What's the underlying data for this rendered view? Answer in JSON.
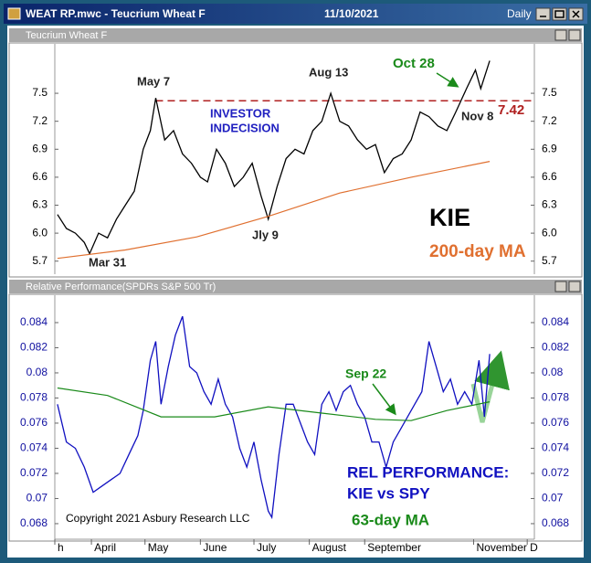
{
  "window": {
    "title": "WEAT RP.mwc - Teucrium Wheat F",
    "date": "11/10/2021",
    "period": "Daily"
  },
  "chart_data": [
    {
      "type": "line",
      "title": "Teucrium Wheat F",
      "xlim": [
        70.5,
        339
      ],
      "ylim": [
        5.56,
        8.03
      ],
      "yticks": [
        5.7,
        {
          "value": 6,
          "label": "6.0"
        },
        6.3,
        6.6,
        6.9,
        7.2,
        7.5
      ],
      "hline": 7.42,
      "hline_color": "#b02020",
      "series": [
        {
          "color": "#000000",
          "x": [
            72,
            77,
            82,
            87,
            90,
            95,
            100,
            105,
            110,
            115,
            120,
            124,
            127,
            132,
            137,
            142,
            147,
            152,
            156,
            161,
            166,
            171,
            176,
            181,
            186,
            190,
            195,
            200,
            205,
            210,
            215,
            220,
            225,
            230,
            235,
            240,
            245,
            250,
            255,
            260,
            265,
            270,
            275,
            280,
            285,
            290,
            295,
            301,
            306,
            309,
            314
          ],
          "values": [
            6.2,
            6.05,
            6.0,
            5.9,
            5.78,
            6.0,
            5.95,
            6.15,
            6.3,
            6.45,
            6.9,
            7.1,
            7.45,
            7.0,
            7.1,
            6.85,
            6.75,
            6.6,
            6.55,
            6.9,
            6.75,
            6.5,
            6.6,
            6.75,
            6.4,
            6.15,
            6.5,
            6.8,
            6.9,
            6.85,
            7.1,
            7.2,
            7.5,
            7.2,
            7.15,
            7.0,
            6.9,
            6.95,
            6.65,
            6.8,
            6.85,
            7.0,
            7.3,
            7.25,
            7.15,
            7.1,
            7.3,
            7.55,
            7.75,
            7.55,
            7.85
          ]
        },
        {
          "name": "200-day MA",
          "color": "#e07030",
          "x": [
            72,
            110,
            150,
            190,
            230,
            270,
            314
          ],
          "values": [
            5.73,
            5.82,
            5.96,
            6.18,
            6.43,
            6.6,
            6.77
          ]
        }
      ],
      "annotations": [
        "May 7",
        "Aug 13",
        "Oct 28",
        "Nov 8",
        "INVESTOR",
        "INDECISION",
        "Mar 31",
        "Jly 9",
        "KIE"
      ]
    },
    {
      "type": "line",
      "title": "Relative Performance(SPDRs S&P 500 Tr)",
      "xlim": [
        70.5,
        339
      ],
      "ylim": [
        0.06676,
        0.08618
      ],
      "yticks": [
        0.068,
        0.07,
        0.072,
        0.074,
        0.076,
        0.078,
        0.08,
        0.082,
        0.084
      ],
      "xticks": [
        {
          "value": 70.5,
          "label": "h"
        },
        {
          "value": 91,
          "label": "April"
        },
        {
          "value": 121,
          "label": "May"
        },
        {
          "value": 152,
          "label": "June"
        },
        {
          "value": 182,
          "label": "July"
        },
        {
          "value": 213,
          "label": "August"
        },
        {
          "value": 244,
          "label": "September"
        },
        {
          "value": 305,
          "label": "November"
        },
        {
          "value": 335,
          "label": "D"
        }
      ],
      "series": [
        {
          "name": "REL PERFORMANCE:",
          "color": "#1010c0",
          "x": [
            72,
            77,
            82,
            87,
            92,
            97,
            102,
            107,
            112,
            117,
            120,
            124,
            127,
            130,
            134,
            138,
            142,
            146,
            150,
            154,
            158,
            162,
            166,
            170,
            174,
            178,
            182,
            186,
            190,
            192,
            196,
            200,
            204,
            208,
            212,
            216,
            220,
            224,
            228,
            232,
            236,
            240,
            244,
            248,
            252,
            256,
            260,
            264,
            268,
            272,
            276,
            280,
            284,
            288,
            292,
            296,
            300,
            304,
            308,
            311,
            314
          ],
          "values": [
            0.0775,
            0.0745,
            0.074,
            0.0725,
            0.0705,
            0.071,
            0.0715,
            0.072,
            0.0735,
            0.075,
            0.077,
            0.081,
            0.0825,
            0.0775,
            0.0805,
            0.083,
            0.0845,
            0.0805,
            0.08,
            0.0785,
            0.0775,
            0.0795,
            0.0775,
            0.0765,
            0.074,
            0.0725,
            0.0745,
            0.0715,
            0.069,
            0.0685,
            0.0735,
            0.0775,
            0.0775,
            0.076,
            0.0745,
            0.0735,
            0.0775,
            0.0785,
            0.077,
            0.0785,
            0.079,
            0.0775,
            0.0765,
            0.0745,
            0.0745,
            0.0725,
            0.0745,
            0.0755,
            0.0765,
            0.0775,
            0.0785,
            0.0825,
            0.0805,
            0.0785,
            0.0795,
            0.0775,
            0.0785,
            0.0775,
            0.081,
            0.0765,
            0.0815
          ]
        },
        {
          "name": "63-day MA",
          "color": "#1a8a1a",
          "x": [
            72,
            100,
            130,
            160,
            190,
            220,
            250,
            270,
            290,
            314
          ],
          "values": [
            0.0788,
            0.0782,
            0.0765,
            0.0765,
            0.0773,
            0.0768,
            0.0763,
            0.0762,
            0.077,
            0.0777
          ]
        }
      ],
      "annotations": [
        "Sep 22",
        "KIE vs SPY",
        "Copyright 2021 Asbury Research LLC"
      ]
    }
  ]
}
